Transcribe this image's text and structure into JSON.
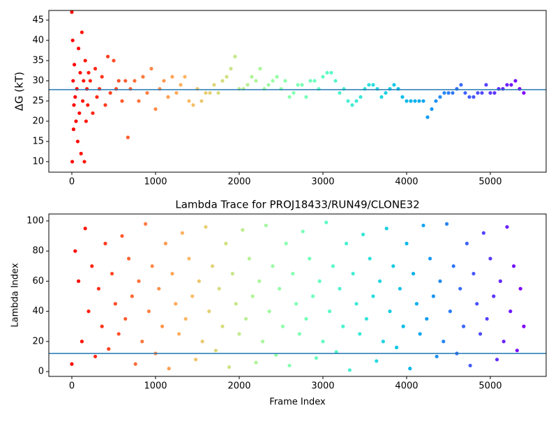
{
  "chart_data": [
    {
      "type": "scatter",
      "ylabel": "ΔG (kT)",
      "colormap": "rainbow_r",
      "x": [
        0,
        5,
        10,
        15,
        20,
        25,
        30,
        40,
        50,
        60,
        70,
        80,
        90,
        100,
        110,
        120,
        130,
        140,
        150,
        160,
        170,
        180,
        190,
        200,
        220,
        250,
        280,
        300,
        330,
        360,
        400,
        430,
        460,
        500,
        530,
        560,
        600,
        640,
        670,
        700,
        750,
        800,
        850,
        900,
        950,
        1000,
        1050,
        1100,
        1150,
        1200,
        1250,
        1300,
        1350,
        1400,
        1450,
        1500,
        1550,
        1600,
        1650,
        1700,
        1750,
        1800,
        1850,
        1900,
        1950,
        2000,
        2050,
        2100,
        2150,
        2200,
        2250,
        2300,
        2350,
        2400,
        2450,
        2500,
        2550,
        2600,
        2650,
        2700,
        2750,
        2800,
        2850,
        2900,
        2950,
        3000,
        3050,
        3100,
        3150,
        3200,
        3250,
        3300,
        3350,
        3400,
        3450,
        3500,
        3550,
        3600,
        3650,
        3700,
        3750,
        3800,
        3850,
        3900,
        3950,
        4000,
        4050,
        4100,
        4150,
        4200,
        4250,
        4300,
        4350,
        4400,
        4450,
        4500,
        4550,
        4600,
        4650,
        4700,
        4750,
        4800,
        4850,
        4900,
        4950,
        5000,
        5050,
        5100,
        5150,
        5200,
        5250,
        5300,
        5350,
        5400
      ],
      "y": [
        47,
        10,
        40,
        30,
        18,
        24,
        34,
        26,
        20,
        28,
        15,
        38,
        22,
        32,
        12,
        42,
        25,
        30,
        10,
        35,
        20,
        28,
        24,
        32,
        30,
        22,
        33,
        26,
        28,
        31,
        24,
        36,
        27,
        35,
        28,
        30,
        25,
        30,
        16,
        28,
        30,
        25,
        31,
        27,
        33,
        23,
        28,
        30,
        26,
        31,
        27,
        29,
        31,
        25,
        24,
        28,
        25,
        27,
        27,
        29,
        27,
        30,
        31,
        33,
        36,
        28,
        28,
        29,
        31,
        30,
        33,
        28,
        29,
        30,
        31,
        28,
        30,
        26,
        27,
        29,
        29,
        26,
        30,
        30,
        28,
        31,
        32,
        32,
        30,
        27,
        28,
        25,
        24,
        25,
        26,
        28,
        29,
        29,
        28,
        26,
        27,
        28,
        29,
        28,
        26,
        25,
        25,
        25,
        25,
        25,
        21,
        23,
        25,
        26,
        27,
        27,
        27,
        28,
        29,
        27,
        26,
        26,
        27,
        27,
        29,
        27,
        27,
        28,
        28,
        29,
        29,
        30,
        28,
        27
      ],
      "hline": 27.8,
      "hline_color": "#1f77b4",
      "xlim": [
        -275,
        5667
      ],
      "ylim": [
        7.4,
        47.4
      ],
      "xticks": [
        0,
        1000,
        2000,
        3000,
        4000,
        5000
      ],
      "yticks": [
        10,
        15,
        20,
        25,
        30,
        35,
        40,
        45
      ]
    },
    {
      "type": "scatter",
      "title": "Lambda Trace for PROJ18433/RUN49/CLONE32",
      "xlabel": "Frame Index",
      "ylabel": "Lambda Index",
      "colormap": "rainbow_r",
      "x": [
        0,
        40,
        80,
        120,
        160,
        200,
        240,
        280,
        320,
        360,
        400,
        440,
        480,
        520,
        560,
        600,
        640,
        680,
        720,
        760,
        800,
        840,
        880,
        920,
        960,
        1000,
        1040,
        1080,
        1120,
        1160,
        1200,
        1240,
        1280,
        1320,
        1360,
        1400,
        1440,
        1480,
        1520,
        1560,
        1600,
        1640,
        1680,
        1720,
        1760,
        1800,
        1840,
        1880,
        1920,
        1960,
        2000,
        2040,
        2080,
        2120,
        2160,
        2200,
        2240,
        2280,
        2320,
        2360,
        2400,
        2440,
        2480,
        2520,
        2560,
        2600,
        2640,
        2680,
        2720,
        2760,
        2800,
        2840,
        2880,
        2920,
        2960,
        3000,
        3040,
        3080,
        3120,
        3160,
        3200,
        3240,
        3280,
        3320,
        3360,
        3400,
        3440,
        3480,
        3520,
        3560,
        3600,
        3640,
        3680,
        3720,
        3760,
        3800,
        3840,
        3880,
        3920,
        3960,
        4000,
        4040,
        4080,
        4120,
        4160,
        4200,
        4240,
        4280,
        4320,
        4360,
        4400,
        4440,
        4480,
        4520,
        4560,
        4600,
        4640,
        4680,
        4720,
        4760,
        4800,
        4840,
        4880,
        4920,
        4960,
        5000,
        5040,
        5080,
        5120,
        5160,
        5200,
        5240,
        5280,
        5320,
        5360,
        5400
      ],
      "y": [
        5,
        80,
        60,
        20,
        95,
        40,
        70,
        10,
        55,
        30,
        85,
        15,
        65,
        45,
        25,
        90,
        35,
        75,
        50,
        5,
        60,
        20,
        98,
        40,
        70,
        12,
        55,
        30,
        85,
        2,
        65,
        45,
        25,
        92,
        35,
        75,
        50,
        8,
        60,
        20,
        96,
        40,
        70,
        14,
        55,
        30,
        85,
        3,
        65,
        45,
        25,
        94,
        35,
        75,
        50,
        6,
        60,
        20,
        97,
        40,
        70,
        11,
        55,
        30,
        85,
        4,
        65,
        45,
        25,
        93,
        35,
        75,
        50,
        9,
        60,
        20,
        99,
        40,
        70,
        13,
        55,
        30,
        85,
        1,
        65,
        45,
        25,
        91,
        35,
        75,
        50,
        7,
        60,
        20,
        95,
        40,
        70,
        16,
        55,
        30,
        85,
        2,
        65,
        45,
        25,
        97,
        35,
        75,
        50,
        10,
        60,
        20,
        98,
        40,
        70,
        12,
        55,
        30,
        85,
        4,
        65,
        45,
        25,
        92,
        35,
        75,
        50,
        8,
        60,
        20,
        96,
        40,
        70,
        14,
        55,
        30
      ],
      "hline": 12,
      "hline_color": "#1f77b4",
      "xlim": [
        -275,
        5667
      ],
      "ylim": [
        -3.2,
        104.6
      ],
      "xticks": [
        0,
        1000,
        2000,
        3000,
        4000,
        5000
      ],
      "yticks": [
        0,
        20,
        40,
        60,
        80,
        100
      ]
    }
  ]
}
